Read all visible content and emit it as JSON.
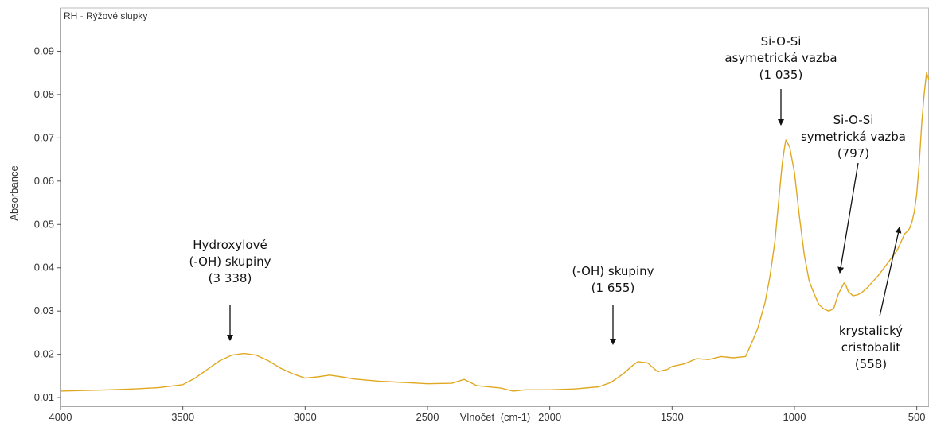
{
  "chart_data": {
    "type": "line",
    "series_label": "RH - Rýžové slupky",
    "xlabel": "Vlnočet",
    "xunit": "(cm-1)",
    "ylabel": "Absorbance",
    "xlim": [
      4000,
      450
    ],
    "ylim": [
      0.008,
      0.1
    ],
    "x_reversed": true,
    "grid": false,
    "line_color": "#E0A820",
    "x_ticks": [
      "4000",
      "3500",
      "3000",
      "2500",
      "2000",
      "1500",
      "1000",
      "500"
    ],
    "y_ticks": [
      "0.01",
      "0.02",
      "0.03",
      "0.04",
      "0.05",
      "0.06",
      "0.07",
      "0.08",
      "0.09"
    ],
    "series": [
      {
        "x": [
          4000,
          3800,
          3700,
          3600,
          3500,
          3450,
          3400,
          3350,
          3300,
          3250,
          3200,
          3150,
          3100,
          3050,
          3000,
          2950,
          2900,
          2850,
          2800,
          2700,
          2600,
          2500,
          2400,
          2350,
          2300,
          2200,
          2150,
          2100,
          2000,
          1900,
          1800,
          1750,
          1700,
          1660,
          1640,
          1600,
          1560,
          1520,
          1500,
          1450,
          1400,
          1350,
          1300,
          1250,
          1200,
          1180,
          1150,
          1120,
          1100,
          1080,
          1060,
          1050,
          1040,
          1035,
          1020,
          1000,
          980,
          960,
          940,
          920,
          900,
          880,
          860,
          840,
          820,
          800,
          797,
          790,
          780,
          760,
          740,
          720,
          700,
          680,
          660,
          640,
          620,
          600,
          580,
          560,
          550,
          540,
          530,
          520,
          510,
          500,
          490,
          480,
          470,
          460,
          450
        ],
        "y": [
          0.0115,
          0.0118,
          0.012,
          0.0123,
          0.013,
          0.0145,
          0.0165,
          0.0185,
          0.0198,
          0.0202,
          0.0198,
          0.0185,
          0.0168,
          0.0155,
          0.0145,
          0.0148,
          0.0152,
          0.0148,
          0.0143,
          0.0138,
          0.0135,
          0.0132,
          0.0133,
          0.0142,
          0.0128,
          0.0122,
          0.0115,
          0.0118,
          0.0118,
          0.012,
          0.0125,
          0.0135,
          0.0155,
          0.0175,
          0.0183,
          0.018,
          0.016,
          0.0165,
          0.0172,
          0.0178,
          0.019,
          0.0188,
          0.0195,
          0.0192,
          0.0195,
          0.022,
          0.026,
          0.032,
          0.038,
          0.046,
          0.058,
          0.064,
          0.068,
          0.0695,
          0.068,
          0.062,
          0.052,
          0.043,
          0.037,
          0.034,
          0.0315,
          0.0305,
          0.03,
          0.0305,
          0.034,
          0.0362,
          0.0365,
          0.036,
          0.0345,
          0.0335,
          0.0338,
          0.0345,
          0.0355,
          0.0368,
          0.038,
          0.0395,
          0.041,
          0.0425,
          0.044,
          0.0465,
          0.0478,
          0.0483,
          0.049,
          0.0505,
          0.053,
          0.057,
          0.064,
          0.073,
          0.08,
          0.085,
          0.0835
        ]
      }
    ],
    "annotations": [
      {
        "lines": [
          "Hydroxylové",
          "(-OH) skupiny",
          "(3 338)"
        ],
        "x": 3338,
        "y": 0.0202
      },
      {
        "lines": [
          "(-OH) skupiny",
          "(1 655)"
        ],
        "x": 1655,
        "y": 0.0183
      },
      {
        "lines": [
          "Si-O-Si",
          "asymetrická vazba",
          "(1 035)"
        ],
        "x": 1035,
        "y": 0.0695
      },
      {
        "lines": [
          "Si-O-Si",
          "symetrická vazba",
          "(797)"
        ],
        "x": 797,
        "y": 0.0365
      },
      {
        "lines": [
          "krystalický",
          "cristobalit",
          "(558)"
        ],
        "x": 558,
        "y": 0.0482
      }
    ]
  }
}
